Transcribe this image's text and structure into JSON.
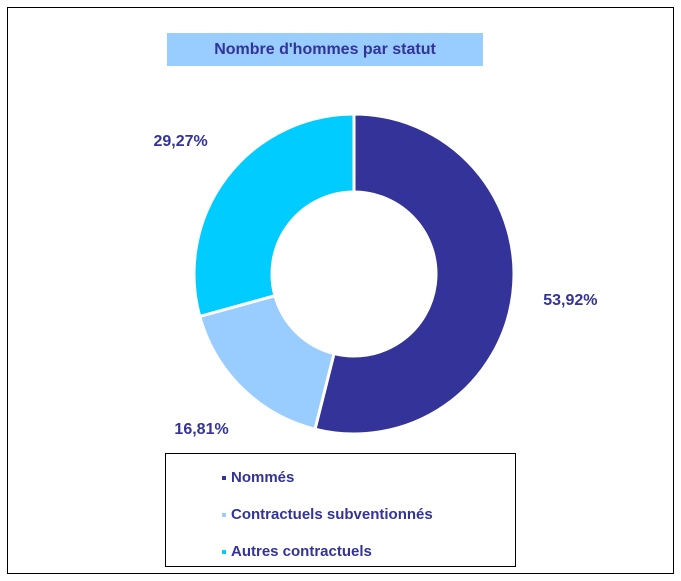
{
  "chart_data": {
    "type": "donut",
    "title": "Nombre d'hommes par statut",
    "categories": [
      "Nommés",
      "Contractuels subventionnés",
      "Autres contractuels"
    ],
    "values": [
      53.92,
      16.81,
      29.27
    ],
    "value_labels": [
      "53,92%",
      "16,81%",
      "29,27%"
    ],
    "colors": [
      "#333399",
      "#99ccff",
      "#00ccff"
    ],
    "legend": "bottom"
  }
}
